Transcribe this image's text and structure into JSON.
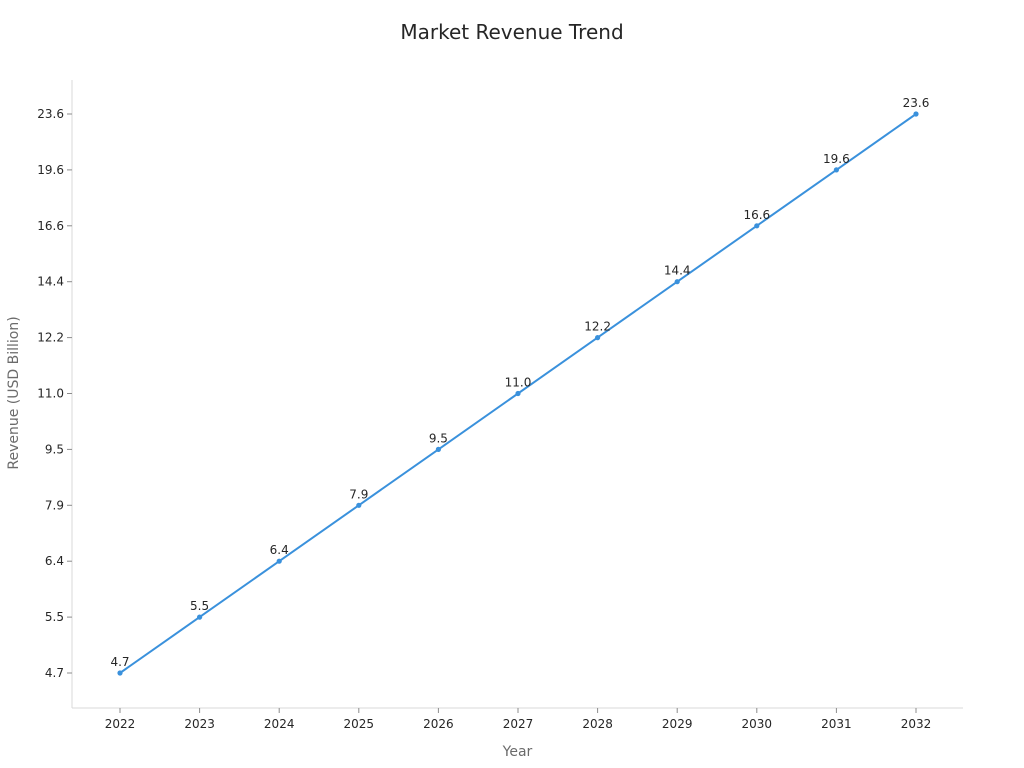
{
  "chart_data": {
    "type": "line",
    "title": "Market Revenue Trend",
    "xlabel": "Year",
    "ylabel": "Revenue (USD Billion)",
    "x": [
      "2022",
      "2023",
      "2024",
      "2025",
      "2026",
      "2027",
      "2028",
      "2029",
      "2030",
      "2031",
      "2032"
    ],
    "series": [
      {
        "values": [
          4.7,
          5.5,
          6.4,
          7.9,
          9.5,
          11.0,
          12.2,
          14.4,
          16.6,
          19.6,
          23.6
        ],
        "data_labels": [
          "4.7",
          "5.5",
          "6.4",
          "7.9",
          "9.5",
          "11.0",
          "12.2",
          "14.4",
          "16.6",
          "19.6",
          "23.6"
        ]
      }
    ],
    "yticks": [
      "4.7",
      "5.5",
      "6.4",
      "7.9",
      "9.5",
      "11.0",
      "12.2",
      "14.4",
      "16.6",
      "19.6",
      "23.6"
    ],
    "y_scale": "categorical-spaced",
    "grid": false,
    "legend": "none",
    "colors": {
      "line": "#3a91dc",
      "axis": "#d9d9d9",
      "text": "#262626",
      "axis_title": "#6b6b6b"
    }
  }
}
